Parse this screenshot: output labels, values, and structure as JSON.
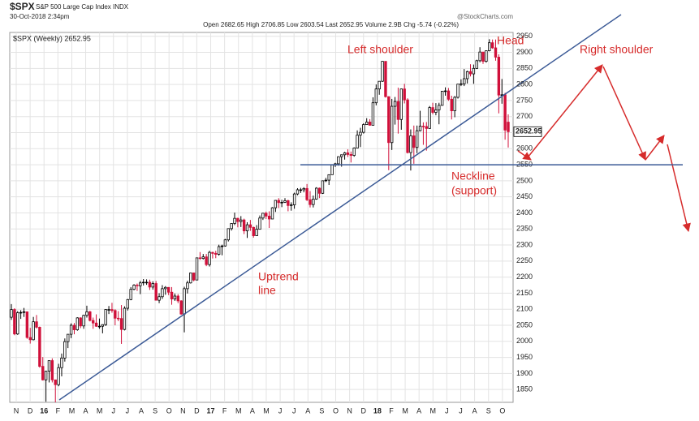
{
  "chart_data": {
    "type": "candlestick",
    "header": {
      "symbol": "$SPX",
      "name": "S&P 500 Large Cap Index INDX",
      "datetime": "30-Oct-2018 2:34pm",
      "quote": "Open 2682.65 High 2706.85 Low 2603.54 Last 2652.95 Volume 2.9B Chg -5.74 (-0.22%)",
      "source": "@StockCharts.com"
    },
    "legend": "$SPX (Weekly) 2652.95",
    "last_price": 2652.95,
    "up_color": "#000000",
    "down_color": "#d0103a",
    "ylim": [
      1810,
      2962
    ],
    "yticks": [
      1850,
      1900,
      1950,
      2000,
      2050,
      2100,
      2150,
      2200,
      2250,
      2300,
      2350,
      2400,
      2450,
      2500,
      2550,
      2600,
      2650,
      2700,
      2750,
      2800,
      2850,
      2900,
      2950
    ],
    "grid": true,
    "x_labels": [
      "N",
      "D",
      "16",
      "F",
      "M",
      "A",
      "M",
      "J",
      "J",
      "A",
      "S",
      "O",
      "N",
      "D",
      "17",
      "F",
      "M",
      "A",
      "M",
      "J",
      "J",
      "A",
      "S",
      "O",
      "N",
      "D",
      "18",
      "F",
      "M",
      "A",
      "M",
      "J",
      "J",
      "A",
      "S",
      "O"
    ],
    "neckline": 2550,
    "annotations": {
      "left_shoulder": "Left shoulder",
      "head": "Head",
      "right_shoulder": "Right shoulder",
      "neckline": [
        "Neckline",
        "(support)"
      ],
      "uptrend": [
        "Uptrend",
        "line"
      ]
    },
    "candles": [
      [
        2075,
        2116,
        2067,
        2099
      ],
      [
        2099,
        2103,
        2019,
        2023
      ],
      [
        2023,
        2094,
        2020,
        2089
      ],
      [
        2089,
        2097,
        2070,
        2090
      ],
      [
        2090,
        2104,
        2076,
        2092
      ],
      [
        2092,
        2093,
        2008,
        2012
      ],
      [
        2012,
        2042,
        1993,
        2005
      ],
      [
        2005,
        2076,
        2003,
        2061
      ],
      [
        2061,
        2082,
        2040,
        2044
      ],
      [
        2044,
        2046,
        1918,
        1922
      ],
      [
        1922,
        1951,
        1878,
        1880
      ],
      [
        1880,
        1908,
        1812,
        1907
      ],
      [
        1907,
        1940,
        1872,
        1940
      ],
      [
        1940,
        1947,
        1872,
        1880
      ],
      [
        1880,
        1881,
        1810,
        1865
      ],
      [
        1865,
        1930,
        1860,
        1918
      ],
      [
        1918,
        1962,
        1891,
        1948
      ],
      [
        1948,
        2009,
        1937,
        1999
      ],
      [
        1999,
        2022,
        1979,
        2022
      ],
      [
        2022,
        2056,
        2010,
        2050
      ],
      [
        2050,
        2057,
        2022,
        2036
      ],
      [
        2036,
        2075,
        2033,
        2073
      ],
      [
        2073,
        2075,
        2041,
        2048
      ],
      [
        2048,
        2083,
        2039,
        2081
      ],
      [
        2081,
        2111,
        2074,
        2092
      ],
      [
        2092,
        2095,
        2062,
        2065
      ],
      [
        2065,
        2074,
        2039,
        2057
      ],
      [
        2057,
        2084,
        2045,
        2047
      ],
      [
        2047,
        2071,
        2039,
        2047
      ],
      [
        2047,
        2053,
        2025,
        2052
      ],
      [
        2052,
        2100,
        2048,
        2099
      ],
      [
        2099,
        2110,
        2085,
        2099
      ],
      [
        2099,
        2120,
        2089,
        2096
      ],
      [
        2096,
        2100,
        2050,
        2072
      ],
      [
        2072,
        2094,
        2063,
        2071
      ],
      [
        2071,
        2113,
        1992,
        2037
      ],
      [
        2037,
        2109,
        2034,
        2103
      ],
      [
        2103,
        2132,
        2096,
        2130
      ],
      [
        2130,
        2169,
        2128,
        2162
      ],
      [
        2162,
        2178,
        2159,
        2175
      ],
      [
        2175,
        2180,
        2157,
        2173
      ],
      [
        2173,
        2188,
        2147,
        2182
      ],
      [
        2182,
        2194,
        2174,
        2184
      ],
      [
        2184,
        2193,
        2176,
        2184
      ],
      [
        2184,
        2192,
        2160,
        2169
      ],
      [
        2169,
        2187,
        2161,
        2180
      ],
      [
        2180,
        2188,
        2127,
        2128
      ],
      [
        2128,
        2150,
        2119,
        2139
      ],
      [
        2139,
        2175,
        2132,
        2164
      ],
      [
        2164,
        2172,
        2145,
        2168
      ],
      [
        2168,
        2169,
        2144,
        2153
      ],
      [
        2153,
        2169,
        2114,
        2132
      ],
      [
        2132,
        2149,
        2126,
        2141
      ],
      [
        2141,
        2147,
        2119,
        2126
      ],
      [
        2126,
        2128,
        2083,
        2085
      ],
      [
        2085,
        2170,
        2028,
        2164
      ],
      [
        2164,
        2189,
        2149,
        2182
      ],
      [
        2182,
        2214,
        2180,
        2213
      ],
      [
        2213,
        2214,
        2187,
        2191
      ],
      [
        2191,
        2260,
        2191,
        2260
      ],
      [
        2260,
        2278,
        2254,
        2258
      ],
      [
        2258,
        2272,
        2255,
        2263
      ],
      [
        2263,
        2272,
        2234,
        2239
      ],
      [
        2239,
        2282,
        2233,
        2277
      ],
      [
        2277,
        2279,
        2258,
        2274
      ],
      [
        2274,
        2282,
        2259,
        2271
      ],
      [
        2271,
        2301,
        2267,
        2295
      ],
      [
        2295,
        2301,
        2268,
        2297
      ],
      [
        2297,
        2319,
        2295,
        2316
      ],
      [
        2316,
        2352,
        2311,
        2351
      ],
      [
        2351,
        2368,
        2345,
        2367
      ],
      [
        2367,
        2401,
        2362,
        2383
      ],
      [
        2383,
        2385,
        2355,
        2373
      ],
      [
        2373,
        2390,
        2356,
        2378
      ],
      [
        2378,
        2382,
        2334,
        2344
      ],
      [
        2344,
        2371,
        2322,
        2363
      ],
      [
        2363,
        2378,
        2344,
        2355
      ],
      [
        2355,
        2357,
        2323,
        2329
      ],
      [
        2329,
        2362,
        2328,
        2349
      ],
      [
        2349,
        2392,
        2349,
        2384
      ],
      [
        2384,
        2400,
        2378,
        2399
      ],
      [
        2399,
        2404,
        2381,
        2390
      ],
      [
        2390,
        2405,
        2353,
        2381
      ],
      [
        2381,
        2418,
        2381,
        2416
      ],
      [
        2416,
        2440,
        2403,
        2439
      ],
      [
        2439,
        2446,
        2415,
        2432
      ],
      [
        2432,
        2441,
        2418,
        2433
      ],
      [
        2433,
        2446,
        2431,
        2438
      ],
      [
        2438,
        2441,
        2405,
        2423
      ],
      [
        2423,
        2433,
        2407,
        2425
      ],
      [
        2425,
        2463,
        2413,
        2459
      ],
      [
        2459,
        2477,
        2455,
        2472
      ],
      [
        2472,
        2478,
        2462,
        2472
      ],
      [
        2472,
        2480,
        2464,
        2476
      ],
      [
        2476,
        2490,
        2437,
        2441
      ],
      [
        2441,
        2468,
        2417,
        2426
      ],
      [
        2426,
        2454,
        2417,
        2443
      ],
      [
        2443,
        2480,
        2441,
        2477
      ],
      [
        2477,
        2479,
        2446,
        2461
      ],
      [
        2461,
        2501,
        2459,
        2500
      ],
      [
        2500,
        2509,
        2496,
        2502
      ],
      [
        2502,
        2520,
        2487,
        2519
      ],
      [
        2519,
        2550,
        2519,
        2549
      ],
      [
        2549,
        2556,
        2543,
        2553
      ],
      [
        2553,
        2576,
        2547,
        2575
      ],
      [
        2575,
        2582,
        2544,
        2581
      ],
      [
        2581,
        2590,
        2566,
        2587
      ],
      [
        2587,
        2598,
        2574,
        2582
      ],
      [
        2582,
        2591,
        2557,
        2579
      ],
      [
        2579,
        2604,
        2575,
        2602
      ],
      [
        2602,
        2657,
        2601,
        2642
      ],
      [
        2642,
        2665,
        2605,
        2651
      ],
      [
        2651,
        2679,
        2647,
        2675
      ],
      [
        2675,
        2695,
        2674,
        2683
      ],
      [
        2683,
        2692,
        2672,
        2673
      ],
      [
        2673,
        2760,
        2673,
        2743
      ],
      [
        2743,
        2800,
        2735,
        2786
      ],
      [
        2786,
        2807,
        2768,
        2810
      ],
      [
        2810,
        2873,
        2808,
        2872
      ],
      [
        2872,
        2872,
        2759,
        2762
      ],
      [
        2762,
        2763,
        2533,
        2619
      ],
      [
        2619,
        2755,
        2596,
        2732
      ],
      [
        2732,
        2761,
        2675,
        2747
      ],
      [
        2747,
        2790,
        2647,
        2691
      ],
      [
        2691,
        2787,
        2659,
        2786
      ],
      [
        2786,
        2802,
        2741,
        2752
      ],
      [
        2752,
        2757,
        2585,
        2588
      ],
      [
        2588,
        2660,
        2532,
        2640
      ],
      [
        2640,
        2672,
        2553,
        2604
      ],
      [
        2604,
        2672,
        2586,
        2656
      ],
      [
        2656,
        2718,
        2654,
        2670
      ],
      [
        2670,
        2682,
        2612,
        2669
      ],
      [
        2669,
        2683,
        2594,
        2663
      ],
      [
        2663,
        2733,
        2662,
        2728
      ],
      [
        2728,
        2743,
        2707,
        2713
      ],
      [
        2713,
        2742,
        2704,
        2721
      ],
      [
        2721,
        2743,
        2676,
        2735
      ],
      [
        2735,
        2779,
        2734,
        2779
      ],
      [
        2779,
        2791,
        2765,
        2780
      ],
      [
        2780,
        2789,
        2749,
        2754
      ],
      [
        2754,
        2765,
        2691,
        2718
      ],
      [
        2718,
        2764,
        2698,
        2760
      ],
      [
        2760,
        2802,
        2756,
        2801
      ],
      [
        2801,
        2816,
        2795,
        2802
      ],
      [
        2802,
        2848,
        2795,
        2818
      ],
      [
        2818,
        2843,
        2803,
        2840
      ],
      [
        2840,
        2863,
        2825,
        2833
      ],
      [
        2833,
        2862,
        2802,
        2850
      ],
      [
        2850,
        2877,
        2848,
        2874
      ],
      [
        2874,
        2916,
        2869,
        2901
      ],
      [
        2901,
        2901,
        2864,
        2872
      ],
      [
        2872,
        2906,
        2868,
        2905
      ],
      [
        2905,
        2941,
        2903,
        2930
      ],
      [
        2930,
        2940,
        2911,
        2914
      ],
      [
        2914,
        2940,
        2874,
        2885
      ],
      [
        2885,
        2894,
        2710,
        2767
      ],
      [
        2767,
        2817,
        2740,
        2768
      ],
      [
        2768,
        2774,
        2628,
        2658
      ],
      [
        2682.65,
        2706.85,
        2603.54,
        2652.95
      ]
    ]
  }
}
